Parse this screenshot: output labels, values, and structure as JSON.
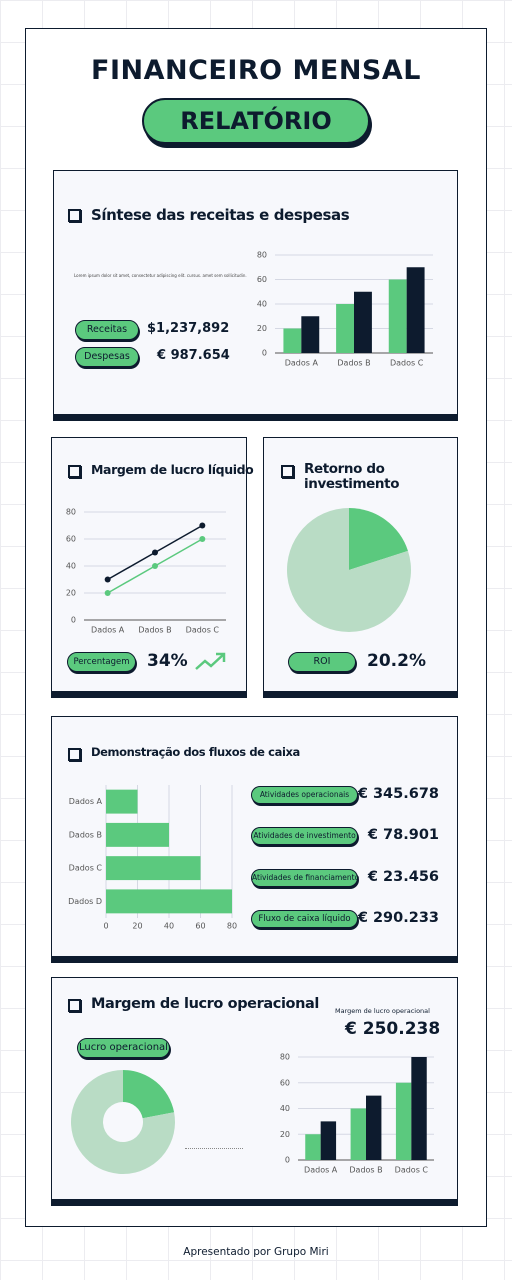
{
  "header": {
    "title": "FINANCEIRO MENSAL",
    "badge": "RELATÓRIO"
  },
  "revenue": {
    "heading": "Síntese das receitas e despesas",
    "text": "Lorem ipsum dolor sit amet, consectetur adipiscing elit. cursus. amet sem sollicitudin.",
    "items": [
      {
        "label": "Receitas",
        "value": "$1,237,892"
      },
      {
        "label": "Despesas",
        "value": "€ 987.654"
      }
    ],
    "chart": {
      "type": "bar",
      "categories": [
        "Dados A",
        "Dados B",
        "Dados C"
      ],
      "series": [
        {
          "color": "#5bc97e",
          "values": [
            20,
            40,
            60
          ]
        },
        {
          "color": "#0d1b2e",
          "values": [
            30,
            50,
            70
          ]
        }
      ],
      "ylim": [
        0,
        80
      ],
      "yticks": [
        0,
        20,
        40,
        60,
        80
      ],
      "grid": true
    }
  },
  "net_margin": {
    "heading": "Margem de lucro líquido",
    "label": "Percentagem",
    "value": "34%",
    "chart": {
      "type": "line",
      "categories": [
        "Dados A",
        "Dados B",
        "Dados C"
      ],
      "series": [
        {
          "color": "#0d1b2e",
          "values": [
            30,
            50,
            70
          ]
        },
        {
          "color": "#5bc97e",
          "values": [
            20,
            40,
            60
          ]
        }
      ],
      "ylim": [
        0,
        80
      ],
      "yticks": [
        0,
        20,
        40,
        60,
        80
      ],
      "grid": true
    }
  },
  "roi": {
    "heading": "Retorno do investimento",
    "label": "ROI",
    "value": "20.2%",
    "chart": {
      "type": "pie",
      "values": [
        20,
        80
      ],
      "colors": [
        "#5bc97e",
        "#b9dcc5"
      ]
    }
  },
  "cash_flow": {
    "heading": "Demonstração dos fluxos de caixa",
    "items": [
      {
        "label": "Atividades operacionais",
        "value": "€ 345.678"
      },
      {
        "label": "Atividades de investimento",
        "value": "€ 78.901"
      },
      {
        "label": "Atividades de financiamento",
        "value": "€ 23.456"
      },
      {
        "label": "Fluxo de caixa líquido",
        "value": "€ 290.233"
      }
    ],
    "chart": {
      "type": "hbar",
      "categories": [
        "Dados A",
        "Dados B",
        "Dados C",
        "Dados D"
      ],
      "values": [
        20,
        40,
        60,
        80
      ],
      "color": "#5bc97e",
      "xlim": [
        0,
        80
      ],
      "xticks": [
        0,
        20,
        40,
        60,
        80
      ],
      "grid": true
    }
  },
  "operating_margin": {
    "heading": "Margem de lucro operacional",
    "caption": "Margem de lucro operacional",
    "value": "€ 250.238",
    "label": "Lucro operacional",
    "donut": {
      "type": "donut",
      "values": [
        22,
        78
      ],
      "colors": [
        "#5bc97e",
        "#b9dcc5"
      ]
    },
    "chart": {
      "type": "bar",
      "categories": [
        "Dados A",
        "Dados B",
        "Dados C"
      ],
      "series": [
        {
          "color": "#5bc97e",
          "values": [
            20,
            40,
            60
          ]
        },
        {
          "color": "#0d1b2e",
          "values": [
            30,
            50,
            80
          ]
        }
      ],
      "ylim": [
        0,
        80
      ],
      "yticks": [
        0,
        20,
        40,
        60,
        80
      ],
      "grid": true
    }
  },
  "footer": "Apresentado por Grupo Miri"
}
